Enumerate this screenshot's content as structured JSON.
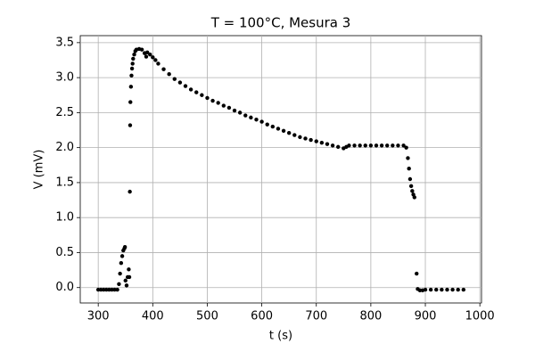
{
  "chart_data": {
    "type": "scatter",
    "title": "T = 100°C, Mesura 3",
    "x_label": "t (s)",
    "y_label": "V (mV)",
    "color": "#000000",
    "grid": true,
    "xlim": [
      267,
      1003
    ],
    "ylim": [
      -0.22,
      3.6
    ],
    "xticks": [
      300,
      400,
      500,
      600,
      700,
      800,
      900,
      1000
    ],
    "yticks": [
      {
        "value": 0,
        "label": "0.0"
      },
      0.5,
      {
        "value": 1,
        "label": "1.0"
      },
      1.5,
      {
        "value": 2,
        "label": "2.0"
      },
      2.5,
      {
        "value": 3,
        "label": "3.0"
      },
      3.5
    ],
    "x": [
      300,
      305,
      310,
      315,
      320,
      325,
      330,
      335,
      338,
      340,
      342,
      344,
      346,
      348,
      349,
      350,
      352,
      354,
      356,
      357,
      358,
      358.5,
      359,
      360,
      361,
      362,
      363,
      364,
      366,
      368,
      370,
      375,
      380,
      385,
      388,
      390,
      395,
      400,
      405,
      410,
      420,
      430,
      440,
      450,
      460,
      470,
      480,
      490,
      500,
      510,
      520,
      530,
      540,
      550,
      560,
      570,
      580,
      590,
      600,
      610,
      620,
      630,
      640,
      650,
      660,
      670,
      680,
      690,
      700,
      710,
      720,
      730,
      740,
      750,
      755,
      760,
      770,
      780,
      790,
      800,
      810,
      820,
      830,
      840,
      850,
      860,
      865,
      868,
      870,
      872,
      874,
      876,
      878,
      880,
      884,
      886,
      890,
      895,
      900,
      910,
      920,
      930,
      940,
      950,
      960,
      970
    ],
    "values": [
      -0.03,
      -0.03,
      -0.03,
      -0.03,
      -0.03,
      -0.03,
      -0.03,
      -0.03,
      0.05,
      0.2,
      0.35,
      0.45,
      0.53,
      0.56,
      0.58,
      0.1,
      0.03,
      0.15,
      0.26,
      0.15,
      1.37,
      2.32,
      2.65,
      2.87,
      3.03,
      3.13,
      3.2,
      3.27,
      3.33,
      3.38,
      3.4,
      3.41,
      3.4,
      3.35,
      3.3,
      3.36,
      3.33,
      3.29,
      3.25,
      3.2,
      3.12,
      3.05,
      2.98,
      2.93,
      2.88,
      2.83,
      2.79,
      2.75,
      2.71,
      2.67,
      2.64,
      2.6,
      2.57,
      2.53,
      2.5,
      2.46,
      2.43,
      2.4,
      2.37,
      2.33,
      2.3,
      2.27,
      2.24,
      2.21,
      2.18,
      2.15,
      2.13,
      2.11,
      2.09,
      2.07,
      2.05,
      2.03,
      2.01,
      1.99,
      2.01,
      2.03,
      2.03,
      2.03,
      2.03,
      2.03,
      2.03,
      2.03,
      2.03,
      2.03,
      2.03,
      2.03,
      2.0,
      1.85,
      1.7,
      1.55,
      1.45,
      1.38,
      1.33,
      1.29,
      0.2,
      -0.02,
      -0.04,
      -0.04,
      -0.03,
      -0.03,
      -0.03,
      -0.03,
      -0.03,
      -0.03,
      -0.03,
      -0.03
    ]
  }
}
